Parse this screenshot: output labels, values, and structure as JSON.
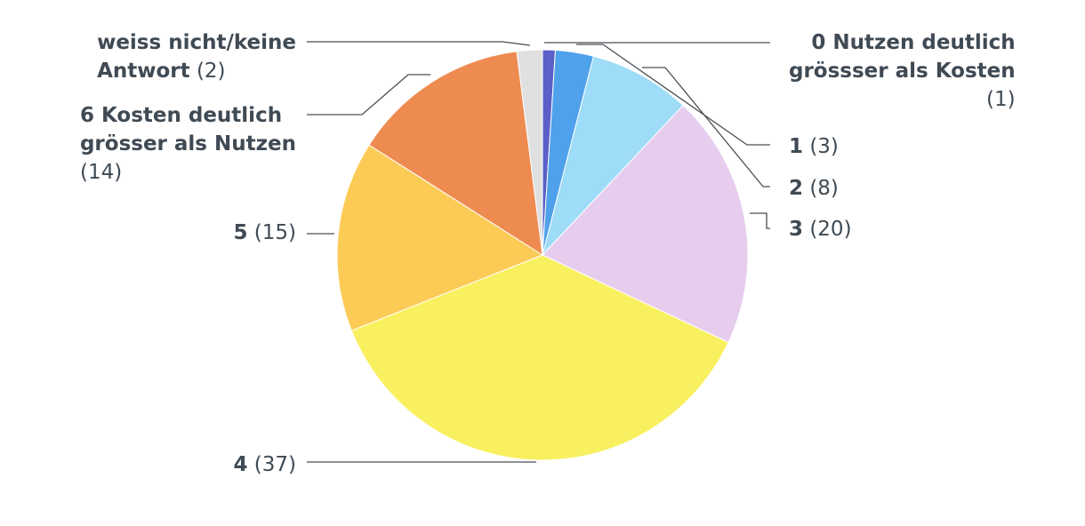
{
  "chart_data": {
    "type": "pie",
    "title": "",
    "slices": [
      {
        "label": "0 Nutzen deutlich grössser als Kosten",
        "label_lines": [
          "0 Nutzen deutlich",
          "grössser als Kosten"
        ],
        "count_text": "(1)",
        "value": 1,
        "color": "#5b5fc7"
      },
      {
        "label": "1",
        "label_lines": [
          "1"
        ],
        "count_text": "(3)",
        "value": 3,
        "color": "#4ea1ea"
      },
      {
        "label": "2",
        "label_lines": [
          "2"
        ],
        "count_text": "(8)",
        "value": 8,
        "color": "#9edcf8"
      },
      {
        "label": "3",
        "label_lines": [
          "3"
        ],
        "count_text": "(20)",
        "value": 20,
        "color": "#e6cdee"
      },
      {
        "label": "4",
        "label_lines": [
          "4"
        ],
        "count_text": "(37)",
        "value": 37,
        "color": "#f9f060"
      },
      {
        "label": "5",
        "label_lines": [
          "5"
        ],
        "count_text": "(15)",
        "value": 15,
        "color": "#fccb56"
      },
      {
        "label": "6 Kosten deutlich grösser als Nutzen",
        "label_lines": [
          "6 Kosten deutlich",
          "grösser als Nutzen"
        ],
        "count_text": "(14)",
        "value": 14,
        "color": "#ee8b50"
      },
      {
        "label": "weiss nicht/keine Antwort",
        "label_lines": [
          "weiss nicht/keine",
          "Antwort"
        ],
        "count_text": "(2)",
        "value": 2,
        "color": "#e0e0e0"
      }
    ]
  }
}
